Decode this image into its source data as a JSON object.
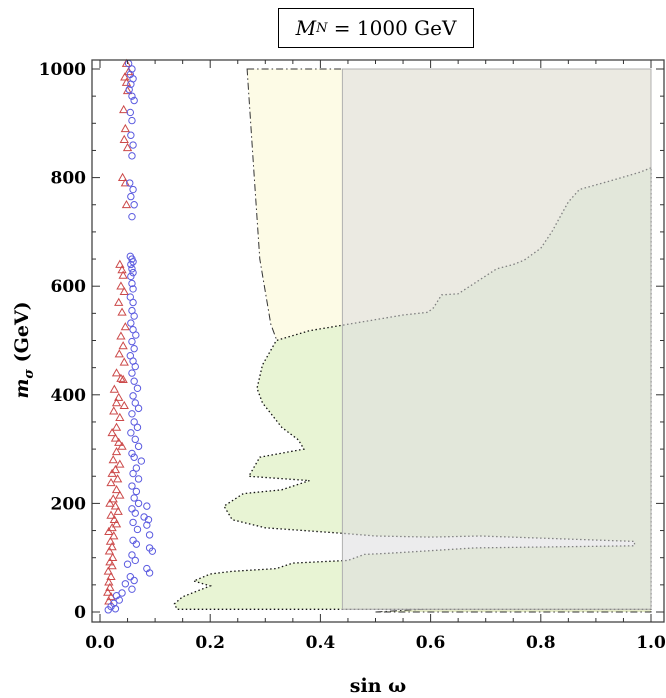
{
  "chart_data": {
    "type": "scatter",
    "title": "M_N = 1000 GeV",
    "title_symbol": "M",
    "title_subscript": "N",
    "title_rest": " = 1000 GeV",
    "xlabel": "sin ω",
    "ylabel_symbol": "m",
    "ylabel_subscript": "σ",
    "ylabel_rest": " (GeV)",
    "xlim": [
      0.0,
      1.0
    ],
    "ylim": [
      0,
      1000
    ],
    "xticks": [
      "0.0",
      "0.2",
      "0.4",
      "0.6",
      "0.8",
      "1.0"
    ],
    "yticks": [
      "0",
      "200",
      "400",
      "600",
      "800",
      "1000"
    ],
    "regions": [
      {
        "name": "yellow-region",
        "fill": "#fdfbe6",
        "outline": "dashdot",
        "points": [
          [
            0.267,
            1000
          ],
          [
            1.0,
            1000
          ],
          [
            1.0,
            150
          ],
          [
            0.85,
            150
          ],
          [
            0.7,
            163
          ],
          [
            0.6,
            185
          ],
          [
            0.55,
            207
          ],
          [
            0.5,
            235
          ],
          [
            0.45,
            270
          ],
          [
            0.4,
            330
          ],
          [
            0.35,
            420
          ],
          [
            0.31,
            530
          ],
          [
            0.29,
            650
          ],
          [
            0.28,
            800
          ],
          [
            0.267,
            1000
          ]
        ]
      },
      {
        "name": "lower-wedge",
        "fill": "#e6ecc8",
        "outline": "dashdot",
        "points": [
          [
            0.5,
            0
          ],
          [
            0.7,
            12
          ],
          [
            0.85,
            28
          ],
          [
            1.0,
            52
          ],
          [
            1.0,
            0
          ]
        ]
      },
      {
        "name": "green-region",
        "fill": "#e8f4d4",
        "outline": "dotted",
        "points": [
          [
            1.0,
            818
          ],
          [
            0.98,
            810
          ],
          [
            0.93,
            795
          ],
          [
            0.87,
            778
          ],
          [
            0.85,
            755
          ],
          [
            0.82,
            700
          ],
          [
            0.8,
            670
          ],
          [
            0.77,
            648
          ],
          [
            0.75,
            640
          ],
          [
            0.72,
            632
          ],
          [
            0.65,
            586
          ],
          [
            0.62,
            584
          ],
          [
            0.605,
            560
          ],
          [
            0.595,
            552
          ],
          [
            0.55,
            547
          ],
          [
            0.48,
            535
          ],
          [
            0.38,
            518
          ],
          [
            0.32,
            500
          ],
          [
            0.295,
            455
          ],
          [
            0.285,
            412
          ],
          [
            0.295,
            385
          ],
          [
            0.33,
            340
          ],
          [
            0.36,
            317
          ],
          [
            0.37,
            300
          ],
          [
            0.29,
            285
          ],
          [
            0.27,
            250
          ],
          [
            0.38,
            242
          ],
          [
            0.33,
            225
          ],
          [
            0.26,
            218
          ],
          [
            0.225,
            195
          ],
          [
            0.24,
            170
          ],
          [
            0.3,
            155
          ],
          [
            0.44,
            145
          ],
          [
            0.5,
            140
          ],
          [
            0.6,
            138
          ],
          [
            0.69,
            140
          ],
          [
            0.97,
            130
          ],
          [
            0.97,
            122
          ],
          [
            0.68,
            118
          ],
          [
            0.52,
            108
          ],
          [
            0.48,
            106
          ],
          [
            0.45,
            95
          ],
          [
            0.35,
            90
          ],
          [
            0.32,
            80
          ],
          [
            0.24,
            75
          ],
          [
            0.2,
            70
          ],
          [
            0.17,
            57
          ],
          [
            0.2,
            48
          ],
          [
            0.15,
            28
          ],
          [
            0.135,
            15
          ],
          [
            0.14,
            5
          ],
          [
            1.0,
            5
          ]
        ]
      },
      {
        "name": "gray-band",
        "fill": "#dcdcde",
        "outline": "none",
        "points": [
          [
            0.44,
            1000
          ],
          [
            1.0,
            1000
          ],
          [
            1.0,
            5
          ],
          [
            0.44,
            5
          ]
        ]
      }
    ],
    "series": [
      {
        "name": "triangles",
        "marker": "triangle",
        "color": "#cc4a4a",
        "points": [
          [
            0.048,
            1010
          ],
          [
            0.052,
            995
          ],
          [
            0.045,
            985
          ],
          [
            0.048,
            975
          ],
          [
            0.05,
            960
          ],
          [
            0.043,
            925
          ],
          [
            0.046,
            890
          ],
          [
            0.044,
            870
          ],
          [
            0.05,
            855
          ],
          [
            0.041,
            800
          ],
          [
            0.046,
            790
          ],
          [
            0.048,
            750
          ],
          [
            0.036,
            640
          ],
          [
            0.04,
            630
          ],
          [
            0.042,
            620
          ],
          [
            0.038,
            600
          ],
          [
            0.044,
            590
          ],
          [
            0.034,
            570
          ],
          [
            0.04,
            552
          ],
          [
            0.046,
            525
          ],
          [
            0.038,
            508
          ],
          [
            0.042,
            490
          ],
          [
            0.035,
            475
          ],
          [
            0.044,
            460
          ],
          [
            0.03,
            440
          ],
          [
            0.038,
            430
          ],
          [
            0.042,
            428
          ],
          [
            0.026,
            410
          ],
          [
            0.034,
            395
          ],
          [
            0.03,
            385
          ],
          [
            0.044,
            380
          ],
          [
            0.025,
            370
          ],
          [
            0.036,
            358
          ],
          [
            0.03,
            340
          ],
          [
            0.022,
            330
          ],
          [
            0.028,
            320
          ],
          [
            0.034,
            312
          ],
          [
            0.04,
            305
          ],
          [
            0.03,
            295
          ],
          [
            0.024,
            280
          ],
          [
            0.036,
            272
          ],
          [
            0.028,
            262
          ],
          [
            0.022,
            255
          ],
          [
            0.032,
            245
          ],
          [
            0.02,
            238
          ],
          [
            0.03,
            225
          ],
          [
            0.036,
            215
          ],
          [
            0.024,
            208
          ],
          [
            0.018,
            200
          ],
          [
            0.028,
            195
          ],
          [
            0.033,
            185
          ],
          [
            0.02,
            178
          ],
          [
            0.026,
            170
          ],
          [
            0.03,
            162
          ],
          [
            0.022,
            155
          ],
          [
            0.016,
            148
          ],
          [
            0.025,
            140
          ],
          [
            0.019,
            130
          ],
          [
            0.022,
            120
          ],
          [
            0.017,
            112
          ],
          [
            0.023,
            100
          ],
          [
            0.018,
            92
          ],
          [
            0.022,
            85
          ],
          [
            0.015,
            75
          ],
          [
            0.02,
            65
          ],
          [
            0.016,
            55
          ],
          [
            0.018,
            45
          ],
          [
            0.014,
            36
          ],
          [
            0.02,
            28
          ],
          [
            0.016,
            20
          ]
        ]
      },
      {
        "name": "circles",
        "marker": "circle",
        "color": "#5b5be0",
        "points": [
          [
            0.052,
            1010
          ],
          [
            0.058,
            1000
          ],
          [
            0.055,
            990
          ],
          [
            0.06,
            982
          ],
          [
            0.056,
            972
          ],
          [
            0.053,
            962
          ],
          [
            0.058,
            950
          ],
          [
            0.062,
            942
          ],
          [
            0.055,
            920
          ],
          [
            0.058,
            905
          ],
          [
            0.056,
            878
          ],
          [
            0.06,
            860
          ],
          [
            0.058,
            840
          ],
          [
            0.054,
            790
          ],
          [
            0.06,
            778
          ],
          [
            0.056,
            765
          ],
          [
            0.062,
            750
          ],
          [
            0.058,
            728
          ],
          [
            0.055,
            655
          ],
          [
            0.058,
            650
          ],
          [
            0.06,
            645
          ],
          [
            0.056,
            640
          ],
          [
            0.058,
            632
          ],
          [
            0.06,
            625
          ],
          [
            0.056,
            618
          ],
          [
            0.058,
            605
          ],
          [
            0.06,
            595
          ],
          [
            0.055,
            580
          ],
          [
            0.06,
            570
          ],
          [
            0.058,
            555
          ],
          [
            0.062,
            545
          ],
          [
            0.056,
            532
          ],
          [
            0.06,
            520
          ],
          [
            0.065,
            510
          ],
          [
            0.058,
            498
          ],
          [
            0.062,
            485
          ],
          [
            0.055,
            472
          ],
          [
            0.06,
            462
          ],
          [
            0.064,
            452
          ],
          [
            0.058,
            440
          ],
          [
            0.062,
            425
          ],
          [
            0.068,
            412
          ],
          [
            0.06,
            398
          ],
          [
            0.064,
            385
          ],
          [
            0.07,
            375
          ],
          [
            0.058,
            365
          ],
          [
            0.062,
            350
          ],
          [
            0.068,
            340
          ],
          [
            0.056,
            330
          ],
          [
            0.064,
            318
          ],
          [
            0.07,
            305
          ],
          [
            0.058,
            292
          ],
          [
            0.062,
            285
          ],
          [
            0.075,
            278
          ],
          [
            0.066,
            265
          ],
          [
            0.06,
            255
          ],
          [
            0.07,
            245
          ],
          [
            0.058,
            232
          ],
          [
            0.066,
            222
          ],
          [
            0.062,
            210
          ],
          [
            0.07,
            200
          ],
          [
            0.085,
            195
          ],
          [
            0.058,
            190
          ],
          [
            0.064,
            182
          ],
          [
            0.08,
            175
          ],
          [
            0.088,
            170
          ],
          [
            0.06,
            165
          ],
          [
            0.085,
            160
          ],
          [
            0.068,
            152
          ],
          [
            0.09,
            142
          ],
          [
            0.06,
            132
          ],
          [
            0.066,
            125
          ],
          [
            0.09,
            118
          ],
          [
            0.095,
            112
          ],
          [
            0.058,
            105
          ],
          [
            0.064,
            95
          ],
          [
            0.05,
            88
          ],
          [
            0.085,
            80
          ],
          [
            0.09,
            72
          ],
          [
            0.055,
            65
          ],
          [
            0.062,
            58
          ],
          [
            0.046,
            52
          ],
          [
            0.058,
            42
          ],
          [
            0.04,
            35
          ],
          [
            0.03,
            30
          ],
          [
            0.035,
            22
          ],
          [
            0.025,
            16
          ],
          [
            0.02,
            10
          ],
          [
            0.028,
            6
          ],
          [
            0.015,
            4
          ]
        ]
      }
    ]
  }
}
